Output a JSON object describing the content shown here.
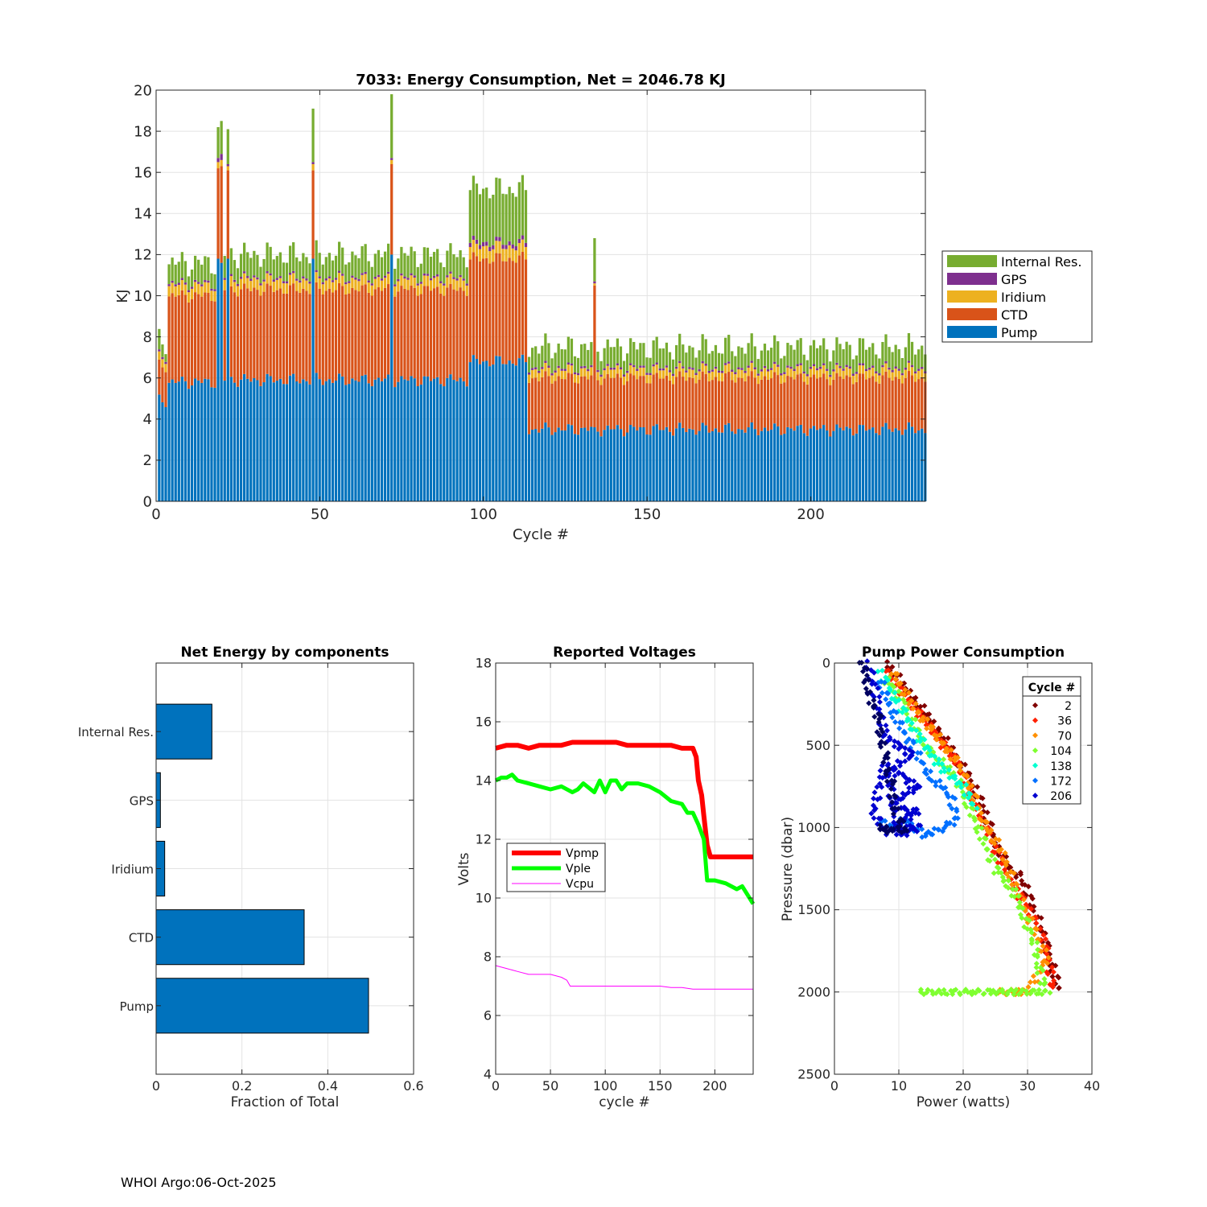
{
  "footer": "WHOI Argo:06-Oct-2025",
  "colors": {
    "pump": "#0072BD",
    "ctd": "#D95319",
    "iridium": "#EDB120",
    "gps": "#7E2F8E",
    "internal_res": "#77AC30",
    "vpmp": "#FF0000",
    "vple": "#00FF00",
    "vcpu": "#FF00FF"
  },
  "chart_data": [
    {
      "id": "energy",
      "type": "bar",
      "stacked": true,
      "title": "7033: Energy Consumption,  Net = 2046.78 KJ",
      "xlabel": "Cycle #",
      "ylabel": "KJ",
      "xlim": [
        0,
        235
      ],
      "ylim": [
        0,
        20
      ],
      "xticks": [
        0,
        50,
        100,
        150,
        200
      ],
      "yticks": [
        0,
        2,
        4,
        6,
        8,
        10,
        12,
        14,
        16,
        18,
        20
      ],
      "grid": true,
      "legend": {
        "placement": "outside-right",
        "entries": [
          "Internal Res.",
          "GPS",
          "Iridium",
          "CTD",
          "Pump"
        ]
      },
      "series_order": [
        "Pump",
        "CTD",
        "Iridium",
        "GPS",
        "Internal Res."
      ],
      "segments": [
        {
          "from": 1,
          "to": 3,
          "pump": 4.9,
          "ctd": 1.7,
          "iridium": 0.4,
          "gps": 0.1,
          "internal_res": 0.7
        },
        {
          "from": 4,
          "to": 18,
          "pump": 5.8,
          "ctd": 4.2,
          "iridium": 0.5,
          "gps": 0.1,
          "internal_res": 1.0
        },
        {
          "from": 19,
          "to": 113,
          "pump": 5.9,
          "ctd": 4.4,
          "iridium": 0.5,
          "gps": 0.1,
          "internal_res": 1.1
        },
        {
          "from": 96,
          "to": 113,
          "pump": 6.8,
          "ctd": 5.0,
          "iridium": 0.6,
          "gps": 0.2,
          "internal_res": 2.6
        },
        {
          "from": 114,
          "to": 235,
          "pump": 3.5,
          "ctd": 2.5,
          "iridium": 0.4,
          "gps": 0.1,
          "internal_res": 1.0
        }
      ],
      "spikes": [
        {
          "cycle": 19,
          "pump": 11.8,
          "ctd": 4.4,
          "iridium": 0.3,
          "gps": 0.2,
          "internal_res": 1.5
        },
        {
          "cycle": 20,
          "pump": 11.6,
          "ctd": 4.7,
          "iridium": 0.3,
          "gps": 0.3,
          "internal_res": 1.6
        },
        {
          "cycle": 22,
          "pump": 11.8,
          "ctd": 4.3,
          "iridium": 0.2,
          "gps": 0.1,
          "internal_res": 1.7
        },
        {
          "cycle": 48,
          "pump": 11.8,
          "ctd": 4.3,
          "iridium": 0.3,
          "gps": 0.1,
          "internal_res": 2.6
        },
        {
          "cycle": 72,
          "pump": 12.0,
          "ctd": 4.4,
          "iridium": 0.2,
          "gps": 0.1,
          "internal_res": 3.1
        },
        {
          "cycle": 134,
          "pump": 3.6,
          "ctd": 6.9,
          "iridium": 0.1,
          "gps": 0.1,
          "internal_res": 2.1
        }
      ]
    },
    {
      "id": "components",
      "type": "bar",
      "orientation": "horizontal",
      "title": "Net Energy by components",
      "xlabel": "Fraction of Total",
      "xlim": [
        0,
        0.6
      ],
      "xticks": [
        0,
        0.2,
        0.4,
        0.6
      ],
      "xtick_labels": [
        "0",
        "0.2",
        "0.4",
        "0.6"
      ],
      "categories": [
        "Pump",
        "CTD",
        "Iridium",
        "GPS",
        "Internal Res."
      ],
      "values": [
        0.495,
        0.345,
        0.02,
        0.01,
        0.13
      ],
      "grid": true
    },
    {
      "id": "voltages",
      "type": "line",
      "title": "Reported Voltages",
      "xlabel": "cycle #",
      "ylabel": "Volts",
      "xlim": [
        0,
        235
      ],
      "ylim": [
        4,
        18
      ],
      "xticks": [
        0,
        50,
        100,
        150,
        200
      ],
      "yticks": [
        4,
        6,
        8,
        10,
        12,
        14,
        16,
        18
      ],
      "grid": true,
      "legend": {
        "placement": "middle-left",
        "entries": [
          "Vpmp",
          "Vple",
          "Vcpu"
        ]
      },
      "series": [
        {
          "name": "Vpmp",
          "x": [
            0,
            10,
            20,
            30,
            40,
            50,
            60,
            70,
            80,
            90,
            100,
            110,
            120,
            130,
            140,
            150,
            160,
            170,
            180,
            183,
            185,
            188,
            190,
            193,
            196,
            200,
            210,
            220,
            235
          ],
          "y": [
            15.1,
            15.2,
            15.2,
            15.1,
            15.2,
            15.2,
            15.2,
            15.3,
            15.3,
            15.3,
            15.3,
            15.3,
            15.2,
            15.2,
            15.2,
            15.2,
            15.2,
            15.1,
            15.1,
            14.8,
            14.0,
            13.5,
            12.8,
            11.8,
            11.4,
            11.4,
            11.4,
            11.4,
            11.4
          ]
        },
        {
          "name": "Vple",
          "x": [
            0,
            5,
            10,
            15,
            20,
            30,
            40,
            50,
            60,
            70,
            75,
            80,
            90,
            95,
            100,
            105,
            110,
            115,
            120,
            130,
            140,
            150,
            160,
            170,
            175,
            180,
            185,
            190,
            193,
            200,
            210,
            220,
            225,
            230,
            235
          ],
          "y": [
            14.0,
            14.1,
            14.1,
            14.2,
            14.0,
            13.9,
            13.8,
            13.7,
            13.8,
            13.6,
            13.7,
            13.9,
            13.6,
            14.0,
            13.6,
            14.0,
            14.0,
            13.7,
            13.9,
            13.9,
            13.8,
            13.6,
            13.3,
            13.2,
            12.9,
            12.9,
            12.5,
            12.0,
            10.6,
            10.6,
            10.5,
            10.3,
            10.4,
            10.1,
            9.8
          ]
        },
        {
          "name": "Vcpu",
          "x": [
            0,
            10,
            20,
            30,
            40,
            50,
            60,
            65,
            68,
            70,
            75,
            80,
            100,
            120,
            150,
            160,
            170,
            180,
            200,
            235
          ],
          "y": [
            7.7,
            7.6,
            7.5,
            7.4,
            7.4,
            7.4,
            7.3,
            7.2,
            7.0,
            7.0,
            7.0,
            7.0,
            7.0,
            7.0,
            7.0,
            6.95,
            6.95,
            6.9,
            6.9,
            6.9
          ]
        }
      ]
    },
    {
      "id": "pump_power",
      "type": "scatter",
      "title": "Pump Power Consumption",
      "xlabel": "Power (watts)",
      "ylabel": "Pressure (dbar)",
      "xlim": [
        0,
        40
      ],
      "ylim": [
        0,
        2500
      ],
      "y_reversed": true,
      "xticks": [
        0,
        10,
        20,
        30,
        40
      ],
      "yticks": [
        0,
        500,
        1000,
        1500,
        2000,
        2500
      ],
      "grid": true,
      "legend": {
        "placement": "top-right",
        "title": "Cycle #",
        "entries": [
          "2",
          "36",
          "70",
          "104",
          "138",
          "172",
          "206"
        ]
      },
      "series": [
        {
          "name": "2",
          "color": "#800000",
          "points": [
            [
              8,
              0
            ],
            [
              12,
              200
            ],
            [
              16,
              400
            ],
            [
              21,
              700
            ],
            [
              23,
              870
            ],
            [
              25,
              1100
            ],
            [
              27,
              1250
            ],
            [
              29,
              1300
            ],
            [
              32,
              1600
            ],
            [
              35,
              2000
            ]
          ]
        },
        {
          "name": "36",
          "color": "#FF2000",
          "points": [
            [
              8,
              50
            ],
            [
              11,
              200
            ],
            [
              15,
              400
            ],
            [
              19,
              600
            ],
            [
              22,
              880
            ],
            [
              24,
              1050
            ],
            [
              27,
              1300
            ],
            [
              31,
              1550
            ],
            [
              33,
              1750
            ],
            [
              34,
              2000
            ]
          ]
        },
        {
          "name": "70",
          "color": "#FF9000",
          "points": [
            [
              9,
              50
            ],
            [
              12,
              250
            ],
            [
              16,
              450
            ],
            [
              20,
              650
            ],
            [
              23,
              950
            ],
            [
              26,
              1150
            ],
            [
              29,
              1450
            ],
            [
              33,
              1800
            ],
            [
              30,
              2000
            ],
            [
              25,
              2000
            ]
          ]
        },
        {
          "name": "104",
          "color": "#7FFF30",
          "points": [
            [
              8,
              100
            ],
            [
              10,
              200
            ],
            [
              14,
              500
            ],
            [
              19,
              700
            ],
            [
              25,
              1250
            ],
            [
              28,
              1400
            ],
            [
              31,
              1700
            ],
            [
              32,
              1900
            ],
            [
              33,
              2000
            ],
            [
              18,
              2000
            ],
            [
              13,
              2000
            ]
          ]
        },
        {
          "name": "138",
          "color": "#00FFD0",
          "points": [
            [
              7,
              50
            ],
            [
              10,
              250
            ],
            [
              13,
              450
            ],
            [
              17,
              650
            ],
            [
              20,
              750
            ],
            [
              22,
              900
            ]
          ]
        },
        {
          "name": "172",
          "color": "#0070FF",
          "points": [
            [
              7,
              100
            ],
            [
              9,
              300
            ],
            [
              12,
              500
            ],
            [
              15,
              700
            ],
            [
              18,
              800
            ],
            [
              19,
              950
            ],
            [
              17,
              1000
            ],
            [
              14,
              1050
            ],
            [
              11,
              950
            ],
            [
              9,
              1000
            ],
            [
              7,
              950
            ]
          ]
        },
        {
          "name": "206",
          "color": "#0000D0",
          "points": [
            [
              5,
              0
            ],
            [
              6,
              100
            ],
            [
              7,
              300
            ],
            [
              8,
              450
            ],
            [
              10,
              500
            ],
            [
              12,
              550
            ],
            [
              9,
              650
            ],
            [
              11,
              700
            ],
            [
              13,
              750
            ],
            [
              9,
              850
            ],
            [
              11,
              900
            ],
            [
              13,
              900
            ],
            [
              9,
              1000
            ],
            [
              11,
              1000
            ],
            [
              13,
              1000
            ],
            [
              10,
              1050
            ],
            [
              8,
              600
            ],
            [
              7,
              750
            ],
            [
              6,
              900
            ],
            [
              8,
              1050
            ]
          ]
        },
        {
          "name": "",
          "color": "#000060",
          "points": [
            [
              4,
              0
            ],
            [
              5,
              50
            ],
            [
              5,
              150
            ],
            [
              6,
              250
            ],
            [
              7,
              350
            ],
            [
              7,
              450
            ],
            [
              8,
              550
            ],
            [
              8,
              650
            ],
            [
              9,
              750
            ],
            [
              9,
              850
            ],
            [
              10,
              950
            ],
            [
              11,
              1020
            ],
            [
              7,
              1000
            ],
            [
              9,
              1030
            ]
          ]
        }
      ]
    }
  ]
}
